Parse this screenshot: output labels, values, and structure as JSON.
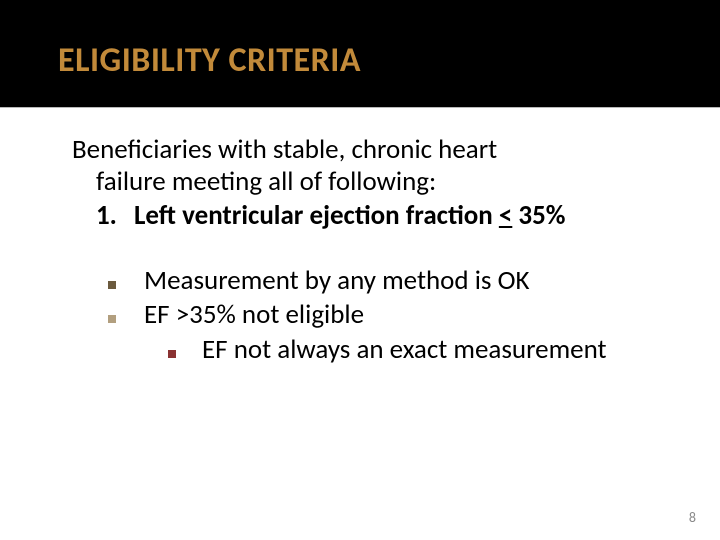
{
  "title": "ELIGIBILITY CRITERIA",
  "intro": {
    "line1": "Beneficiaries with stable, chronic heart",
    "line2": "failure meeting all of following:"
  },
  "numbered": {
    "num": "1.",
    "text_before_underline": "Left ventricular ejection fraction ",
    "underline_text": "<",
    "text_after_underline": " 35%"
  },
  "bullets": {
    "b1": "Measurement by any method is OK",
    "b2": "EF >35% not eligible",
    "sub": "EF not always an exact measurement"
  },
  "page_number": "8",
  "colors": {
    "title": "#c28a3a",
    "header_bg": "#000000",
    "bullet_dark": "#6b5a3e",
    "bullet_light": "#b29f7f",
    "bullet_red": "#8a3232"
  }
}
